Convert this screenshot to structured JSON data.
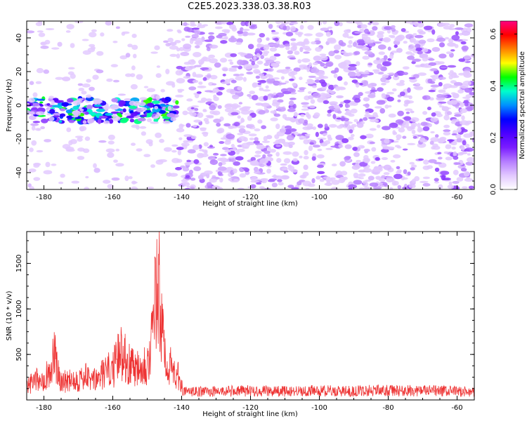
{
  "title": "C2E5.2023.338.03.38.R03",
  "chart_data": [
    {
      "type": "heatmap",
      "title": "",
      "xlabel": "Height of straight line (km)",
      "ylabel": "Frequency (Hz)",
      "xlim": [
        -185,
        -55
      ],
      "ylim": [
        -50,
        50
      ],
      "xticks": [
        -180,
        -160,
        -140,
        -120,
        -100,
        -80,
        -60
      ],
      "yticks": [
        -40,
        -20,
        0,
        20,
        40
      ],
      "colorbar": {
        "label": "Normalized spectral amplitude",
        "range": [
          0.0,
          0.65
        ],
        "ticks": [
          0.0,
          0.2,
          0.4,
          0.6
        ],
        "colors": [
          "#ffffff",
          "#e2c8ff",
          "#b57cff",
          "#7a1cff",
          "#4c00ff",
          "#0000ff",
          "#0090ff",
          "#00ffcc",
          "#00ff00",
          "#ffff00",
          "#ff8000",
          "#ff0000",
          "#ff0080"
        ]
      },
      "bands": [
        {
          "x_range": [
            -185,
            -141
          ],
          "freq_range": [
            -10,
            4
          ],
          "peak_amplitude": 0.45,
          "description": "strong band near 0 Hz"
        },
        {
          "x_range": [
            -185,
            -141
          ],
          "freq_range": [
            -50,
            50
          ],
          "peak_amplitude": 0.08
        },
        {
          "x_range": [
            -141,
            -55
          ],
          "freq_range": [
            -50,
            50
          ],
          "peak_amplitude": 0.15
        }
      ]
    },
    {
      "type": "line",
      "title": "",
      "xlabel": "Height of straight line (km)",
      "ylabel": "SNR (10 * v/v)",
      "xlim": [
        -185,
        -55
      ],
      "ylim": [
        0,
        1850
      ],
      "xticks": [
        -180,
        -160,
        -140,
        -120,
        -100,
        -80,
        -60
      ],
      "yticks": [
        500,
        1000,
        1500
      ],
      "series": [
        {
          "color": "#ee3333",
          "x": [
            -185,
            -182,
            -180,
            -178,
            -177,
            -176,
            -174,
            -172,
            -170,
            -168,
            -166,
            -164,
            -162,
            -160,
            -158,
            -157,
            -156,
            -155,
            -154,
            -153,
            -152,
            -151,
            -150,
            -149,
            -148,
            -147.5,
            -147,
            -146.5,
            -146,
            -145,
            -144,
            -143,
            -142,
            -141,
            -140,
            -139,
            -130,
            -120,
            -110,
            -100,
            -90,
            -85,
            -80,
            -70,
            -60,
            -55
          ],
          "values": [
            220,
            320,
            380,
            460,
            780,
            420,
            300,
            360,
            320,
            380,
            300,
            360,
            460,
            500,
            720,
            860,
            640,
            560,
            600,
            520,
            680,
            620,
            560,
            840,
            1300,
            1840,
            1580,
            1700,
            1240,
            820,
            640,
            500,
            460,
            380,
            230,
            130,
            140,
            150,
            140,
            150,
            140,
            160,
            150,
            150,
            140,
            130
          ]
        }
      ]
    }
  ]
}
